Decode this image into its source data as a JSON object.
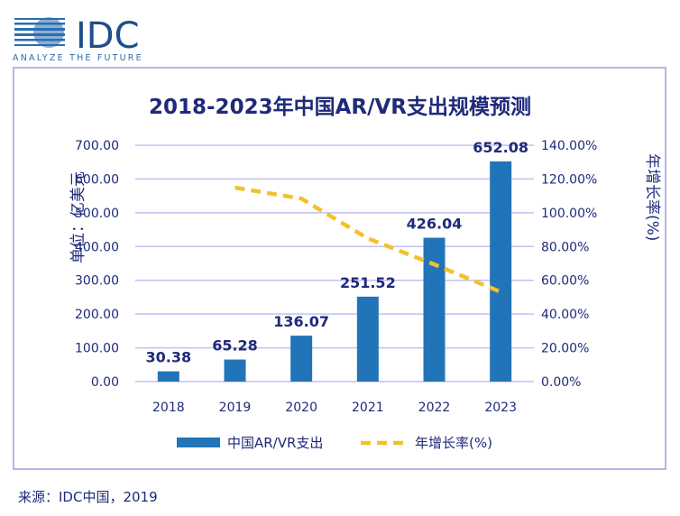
{
  "logo": {
    "name": "IDC",
    "tagline": "ANALYZE THE FUTURE"
  },
  "source": "来源：IDC中国，2019",
  "colors": {
    "bar": "#2274b8",
    "line": "#f2c12e",
    "title": "#1f2a7a",
    "grid": "#c3c0f0"
  },
  "chart_data": {
    "type": "bar",
    "title": "2018-2023年中国AR/VR支出规模预测",
    "ylabel": "单位：亿美元",
    "y2label": "年增长率(%)",
    "categories": [
      "2018",
      "2019",
      "2020",
      "2021",
      "2022",
      "2023"
    ],
    "ylim": [
      0,
      700
    ],
    "y2lim": [
      0,
      140
    ],
    "yticks": [
      "0.00",
      "100.00",
      "200.00",
      "300.00",
      "400.00",
      "500.00",
      "600.00",
      "700.00"
    ],
    "y2ticks": [
      "0.00%",
      "20.00%",
      "40.00%",
      "60.00%",
      "80.00%",
      "100.00%",
      "120.00%",
      "140.00%"
    ],
    "grid": true,
    "legend": "bottom",
    "series": [
      {
        "name": "中国AR/VR支出",
        "type": "bar",
        "values": [
          30.38,
          65.28,
          136.07,
          251.52,
          426.04,
          652.08
        ],
        "labels": [
          "30.38",
          "65.28",
          "136.07",
          "251.52",
          "426.04",
          "652.08"
        ]
      },
      {
        "name": "年增长率(%)",
        "type": "line",
        "axis": "right",
        "style": "dashed",
        "values": [
          null,
          114.9,
          108.4,
          84.8,
          69.4,
          53.1
        ]
      }
    ]
  }
}
